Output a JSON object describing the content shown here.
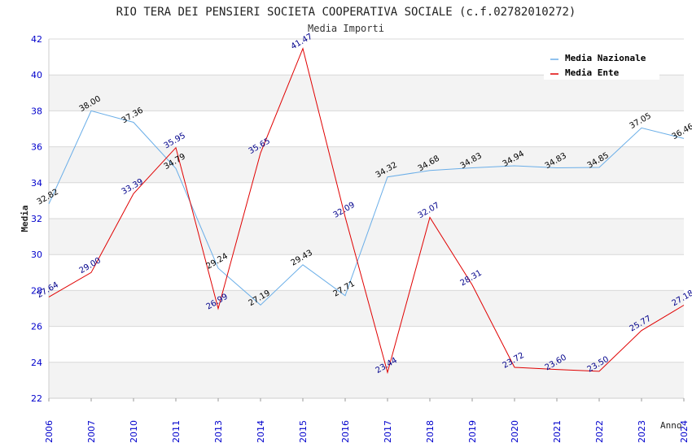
{
  "chart_data": {
    "type": "line",
    "title": "RIO TERA DEI PENSIERI SOCIETA COOPERATIVA SOCIALE (c.f.02782010272)",
    "subtitle": "Media Importi",
    "xlabel": "Anno",
    "ylabel": "Media",
    "ylim": [
      22,
      42
    ],
    "yticks": [
      "22",
      "24",
      "26",
      "28",
      "30",
      "32",
      "34",
      "36",
      "38",
      "40",
      "42"
    ],
    "categories": [
      "2006",
      "2007",
      "2010",
      "2011",
      "2013",
      "2014",
      "2015",
      "2016",
      "2017",
      "2018",
      "2019",
      "2020",
      "2021",
      "2022",
      "2023",
      "2024"
    ],
    "grid": true,
    "legend_position": "top-right",
    "series": [
      {
        "name": "Media Nazionale",
        "color": "#6aaee8",
        "values": [
          32.82,
          38.0,
          37.36,
          34.79,
          29.24,
          27.19,
          29.43,
          27.71,
          34.32,
          34.68,
          34.83,
          34.94,
          34.83,
          34.85,
          37.05,
          36.46
        ],
        "labels": [
          "32.82",
          "38.00",
          "37.36",
          "34.79",
          "29.24",
          "27.19",
          "29.43",
          "27.71",
          "34.32",
          "34.68",
          "34.83",
          "34.94",
          "34.83",
          "34.85",
          "37.05",
          "36.46"
        ]
      },
      {
        "name": "Media Ente",
        "color": "#e00000",
        "values": [
          27.64,
          29.0,
          33.39,
          35.95,
          26.99,
          35.65,
          41.47,
          32.09,
          23.44,
          32.07,
          28.31,
          23.72,
          23.6,
          23.5,
          25.77,
          27.18
        ],
        "labels": [
          "27.64",
          "29.00",
          "33.39",
          "35.95",
          "26.99",
          "35.65",
          "41.47",
          "32.09",
          "23.44",
          "32.07",
          "28.31",
          "23.72",
          "23.60",
          "23.50",
          "25.77",
          "27.18"
        ]
      }
    ]
  }
}
